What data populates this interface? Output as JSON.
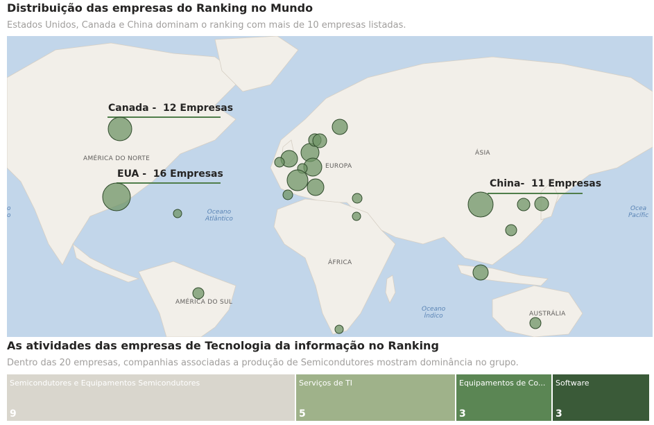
{
  "map_section": {
    "title": "Distribuição das empresas do Ranking no Mundo",
    "subtitle": "Estados Unidos, Canada e China dominam o ranking com mais de 10 empresas listadas.",
    "callouts": {
      "canada": "Canada -  12 Empresas",
      "eua": "EUA -  16 Empresas",
      "china": "China-  11 Empresas"
    },
    "region_labels": {
      "north_america": "AMÉRICA DO NORTE",
      "europe": "EUROPA",
      "asia": "ÁSIA",
      "africa": "ÁFRICA",
      "south_america": "AMÉRICA DO SUL",
      "australia": "AUSTRÁLIA"
    },
    "ocean_labels": {
      "atlantic_1": "Oceano",
      "atlantic_2": "Atlântico",
      "indian_1": "Oceano",
      "indian_2": "Índico",
      "pacific_1": "Ocea",
      "pacific_2": "Pacífic",
      "left_1": "o",
      "left_2": "o"
    },
    "colors": {
      "water": "#c2d6ea",
      "land": "#f2efe9",
      "bubble": "#6f9466",
      "bubble_stroke": "#2f4a2b",
      "callout_line": "#4f7d4a"
    }
  },
  "treemap_section": {
    "title": "As atividades das empresas de Tecnologia da informação no Ranking",
    "subtitle": "Dentro das 20 empresas, companhias associadas a produção de Semicondutores mostram dominância no grupo.",
    "tiles": [
      {
        "label": "Semicondutores e Equipamentos Semicondutores",
        "value": "9",
        "color": "#d9d6cd"
      },
      {
        "label": "Serviços de TI",
        "value": "5",
        "color": "#9fb28a"
      },
      {
        "label": "Equipamentos de Co...",
        "value": "3",
        "color": "#5b8654"
      },
      {
        "label": "Software",
        "value": "3",
        "color": "#3a5a38"
      }
    ]
  }
}
